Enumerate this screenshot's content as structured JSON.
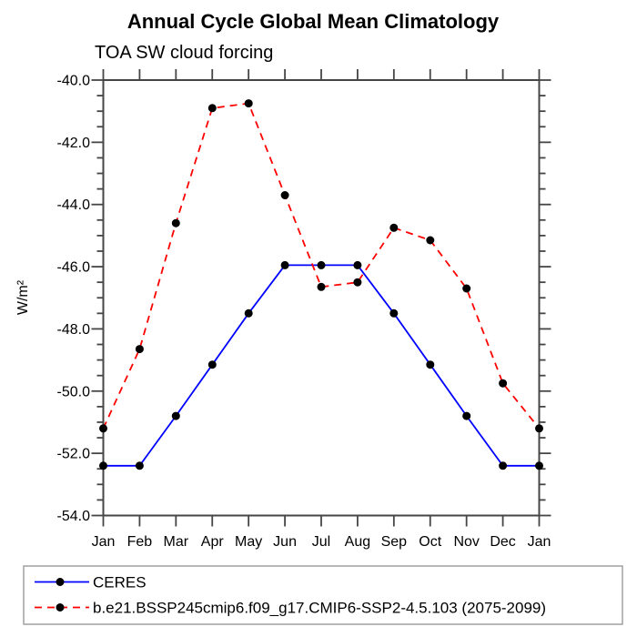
{
  "page": {
    "title": "Annual Cycle Global Mean Climatology",
    "subtitle": "TOA SW cloud forcing"
  },
  "colors": {
    "ceres_line": "#0000ff",
    "model_line": "#ff0000",
    "marker": "#000000",
    "axis": "#454545",
    "legend_border": "#a0a0a0",
    "text": "#000000"
  },
  "chart_data": {
    "type": "line",
    "title": "Annual Cycle Global Mean Climatology",
    "subtitle": "TOA SW cloud forcing",
    "xlabel": "",
    "ylabel": "W/m²",
    "x_categories": [
      "Jan",
      "Feb",
      "Mar",
      "Apr",
      "May",
      "Jun",
      "Jul",
      "Aug",
      "Sep",
      "Oct",
      "Nov",
      "Dec",
      "Jan"
    ],
    "ylim": [
      -54.0,
      -40.0
    ],
    "y_major_ticks": [
      -40.0,
      -42.0,
      -44.0,
      -46.0,
      -48.0,
      -50.0,
      -52.0,
      -54.0
    ],
    "y_tick_labels": [
      "-40.0",
      "-42.0",
      "-44.0",
      "-46.0",
      "-48.0",
      "-50.0",
      "-52.0",
      "-54.0"
    ],
    "y_minor_step": 0.5,
    "grid": false,
    "legend_position": "bottom-left-box",
    "series": [
      {
        "name": "CERES",
        "color": "#0000ff",
        "line_style": "solid",
        "marker": "filled-circle",
        "marker_color": "#000000",
        "values": [
          -52.4,
          -52.4,
          -50.8,
          -49.15,
          -47.5,
          -45.95,
          -45.95,
          -45.95,
          -47.5,
          -49.15,
          -50.8,
          -52.4,
          -52.4
        ]
      },
      {
        "name": "b.e21.BSSP245cmip6.f09_g17.CMIP6-SSP2-4.5.103 (2075-2099)",
        "color": "#ff0000",
        "line_style": "dashed",
        "marker": "filled-circle",
        "marker_color": "#000000",
        "values": [
          -51.2,
          -48.65,
          -44.6,
          -40.9,
          -40.75,
          -43.7,
          -46.65,
          -46.5,
          -44.75,
          -45.15,
          -46.7,
          -49.75,
          -51.2
        ]
      }
    ]
  }
}
